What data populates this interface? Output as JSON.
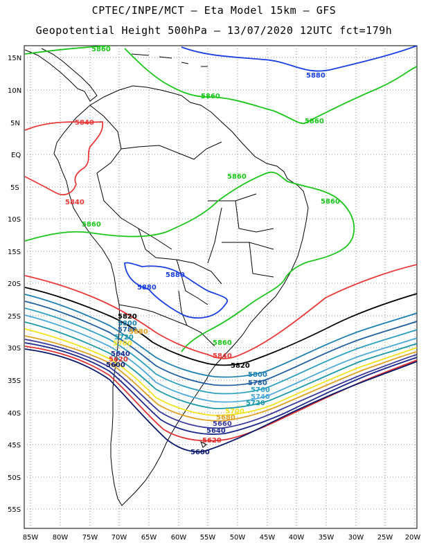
{
  "header": {
    "line1": "CPTEC/INPE/MCT –  Eta Model 15km – GFS",
    "line2": "Geopotential Height 500hPa – 13/07/2020 12UTC fct=179h"
  },
  "axes": {
    "lat_labels": [
      "15N",
      "10N",
      "5N",
      "EQ",
      "5S",
      "10S",
      "15S",
      "20S",
      "25S",
      "30S",
      "35S",
      "40S",
      "45S",
      "50S",
      "55S"
    ],
    "lon_labels": [
      "85W",
      "80W",
      "75W",
      "70W",
      "65W",
      "60W",
      "55W",
      "50W",
      "45W",
      "40W",
      "35W",
      "30W",
      "25W",
      "20W"
    ]
  },
  "colors": {
    "c5880": "#1a3fe0",
    "c5860": "#19c619",
    "c5840": "#e83a3a",
    "c5820": "#000000",
    "c5800": "#1b7fb0",
    "c5780": "#1f5fa0",
    "c5760": "#2a9fc0",
    "c5740": "#4aa9d8",
    "c5720": "#1a99a8",
    "c5700": "#f2e21a",
    "c5680": "#e0a020",
    "c5660": "#3a3a9a",
    "c5640": "#1c2a8c",
    "c5620": "#e03030",
    "c5600": "#0a1a6a"
  },
  "contour_labels": {
    "l5880_a": "5880",
    "l5880_b": "5880",
    "l5880_c": "5880",
    "l5860_a": "5860",
    "l5860_b": "5860",
    "l5860_c": "5860",
    "l5860_d": "5860",
    "l5860_e": "5860",
    "l5860_f": "5860",
    "l5860_g": "5860",
    "l5840_a": "5840",
    "l5840_b": "5840",
    "l5840_c": "5840",
    "l5820_a": "5820",
    "l5820_b": "5820",
    "l5800_a": "5800",
    "l5800_b": "5800",
    "l5780_a": "5780",
    "l5780_b": "5780",
    "l5760_a": "5760",
    "l5740_a": "5740",
    "l5720_a": "5720",
    "l5720_b": "5720",
    "l5700_a": "5700",
    "l5700_b": "5700",
    "l5680_a": "5680",
    "l5680_b": "5680",
    "l5660_a": "5660",
    "l5640_a": "5640",
    "l5640_b": "5640",
    "l5620_a": "5620",
    "l5620_b": "5620",
    "l5600_a": "5600",
    "l5600_b": "5600"
  }
}
